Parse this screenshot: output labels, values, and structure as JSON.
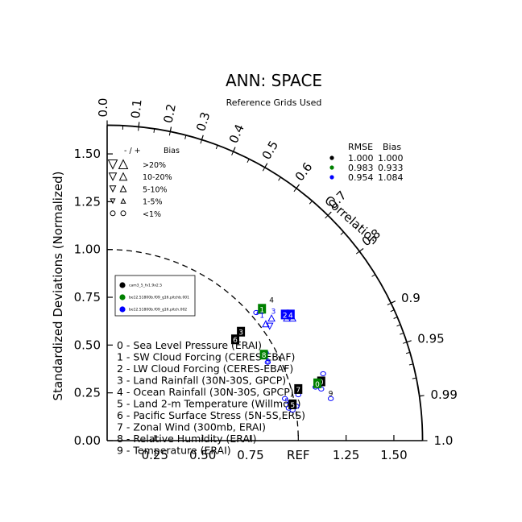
{
  "chart_data": {
    "type": "taylor",
    "title": "ANN: SPACE",
    "subtitle": "Reference Grids Used",
    "ylabel": "Standardized Deviations (Normalized)",
    "correlation_label": "Correlation",
    "ref_label": "REF",
    "x_ticks": [
      "0.25",
      "0.50",
      "0.75",
      "REF",
      "1.25",
      "1.50"
    ],
    "y_ticks": [
      "0.00",
      "0.25",
      "0.50",
      "0.75",
      "1.00",
      "1.25",
      "1.50"
    ],
    "sd_max": 1.65,
    "corr_ticks_inner": [
      "0.0",
      "0.1",
      "0.2",
      "0.3",
      "0.4",
      "0.5",
      "0.6",
      "0.7",
      "0.8"
    ],
    "corr_ticks_outer": [
      "0.9",
      "0.95",
      "0.99",
      "1.0"
    ],
    "bias_legend": {
      "header_sign": "- / +",
      "header_bias": "Bias",
      "rows": [
        ">20%",
        "10-20%",
        "5-10%",
        "1-5%",
        "<1%"
      ]
    },
    "rmse_legend": {
      "header_rmse": "RMSE",
      "header_bias": "Bias",
      "rows": [
        {
          "color": "#000000",
          "rmse": "1.000",
          "bias": "1.000"
        },
        {
          "color": "#008000",
          "rmse": "0.983",
          "bias": "0.933"
        },
        {
          "color": "#0000ff",
          "rmse": "0.954",
          "bias": "1.084"
        }
      ]
    },
    "cases": [
      {
        "name": "cam3_5_fv1.9x2.5",
        "color": "#000000"
      },
      {
        "name": "be12.51800b.f09_g16.pitchb.001",
        "color": "#008000"
      },
      {
        "name": "be12.51800b.f09_g16.pitch.002",
        "color": "#0000ff"
      }
    ],
    "variables": [
      "0 - Sea Level Pressure (ERAI)",
      "1 - SW Cloud Forcing (CERES-EBAF)",
      "2 - LW Cloud Forcing (CERES-EBAF)",
      "3 - Land Rainfall (30N-30S, GPCP)",
      "4 - Ocean Rainfall (30N-30S, GPCP)",
      "5 - Land 2-m Temperature (Willmott)",
      "6 - Pacific Surface Stress (5N-5S,ERS)",
      "7 - Zonal Wind (300mb, ERAI)",
      "8 - Relative Humidity (ERAI)",
      "9 - Temperature (ERAI)"
    ],
    "points": [
      {
        "case": 0,
        "var": "3",
        "x": 0.7,
        "y": 0.57,
        "style": "box"
      },
      {
        "case": 0,
        "var": "6",
        "x": 0.67,
        "y": 0.53,
        "style": "box"
      },
      {
        "case": 0,
        "var": "0",
        "x": 1.12,
        "y": 0.31,
        "style": "box"
      },
      {
        "case": 0,
        "var": "7",
        "x": 1.0,
        "y": 0.27,
        "style": "box"
      },
      {
        "case": 0,
        "var": "5",
        "x": 0.97,
        "y": 0.19,
        "style": "box"
      },
      {
        "case": 0,
        "var": "4",
        "x": 0.86,
        "y": 0.74,
        "style": "plain"
      },
      {
        "case": 0,
        "var": "9",
        "x": 1.17,
        "y": 0.25,
        "style": "plain"
      },
      {
        "case": 1,
        "var": "1",
        "x": 0.81,
        "y": 0.69,
        "style": "box"
      },
      {
        "case": 1,
        "var": "8",
        "x": 0.82,
        "y": 0.45,
        "style": "box"
      },
      {
        "case": 1,
        "var": "0",
        "x": 1.1,
        "y": 0.3,
        "style": "box"
      },
      {
        "case": 2,
        "var": "2",
        "x": 0.93,
        "y": 0.66,
        "style": "box"
      },
      {
        "case": 2,
        "var": "4",
        "x": 0.96,
        "y": 0.66,
        "style": "box"
      },
      {
        "case": 2,
        "var": "1",
        "x": 0.81,
        "y": 0.66,
        "style": "plain"
      },
      {
        "case": 2,
        "var": "3",
        "x": 0.87,
        "y": 0.68,
        "style": "plain"
      },
      {
        "case": 2,
        "var": "5",
        "x": 0.94,
        "y": 0.21,
        "style": "plain"
      },
      {
        "case": 2,
        "var": "8",
        "x": 0.84,
        "y": 0.42,
        "style": "plain"
      }
    ],
    "bias_markers": [
      {
        "case": 2,
        "x": 0.86,
        "y": 0.64,
        "shape": "tri-up"
      },
      {
        "case": 2,
        "x": 0.83,
        "y": 0.61,
        "shape": "tri-up"
      },
      {
        "case": 2,
        "x": 0.85,
        "y": 0.6,
        "shape": "tri-down"
      },
      {
        "case": 2,
        "x": 0.94,
        "y": 0.64,
        "shape": "tri-up"
      },
      {
        "case": 2,
        "x": 0.97,
        "y": 0.64,
        "shape": "tri-up"
      },
      {
        "case": 2,
        "x": 0.8,
        "y": 0.68,
        "shape": "tri-up"
      },
      {
        "case": 2,
        "x": 0.82,
        "y": 0.44,
        "shape": "circle"
      },
      {
        "case": 2,
        "x": 0.84,
        "y": 0.41,
        "shape": "circle"
      },
      {
        "case": 2,
        "x": 0.83,
        "y": 0.46,
        "shape": "circle"
      },
      {
        "case": 2,
        "x": 0.93,
        "y": 0.22,
        "shape": "circle"
      },
      {
        "case": 2,
        "x": 0.96,
        "y": 0.2,
        "shape": "circle"
      },
      {
        "case": 2,
        "x": 0.95,
        "y": 0.17,
        "shape": "circle"
      },
      {
        "case": 2,
        "x": 0.97,
        "y": 0.16,
        "shape": "circle"
      },
      {
        "case": 2,
        "x": 0.99,
        "y": 0.18,
        "shape": "circle"
      },
      {
        "case": 2,
        "x": 1.0,
        "y": 0.24,
        "shape": "circle"
      },
      {
        "case": 2,
        "x": 1.13,
        "y": 0.35,
        "shape": "circle"
      },
      {
        "case": 2,
        "x": 1.11,
        "y": 0.29,
        "shape": "circle"
      },
      {
        "case": 2,
        "x": 1.12,
        "y": 0.27,
        "shape": "circle"
      },
      {
        "case": 2,
        "x": 1.09,
        "y": 0.28,
        "shape": "circle"
      },
      {
        "case": 2,
        "x": 1.17,
        "y": 0.22,
        "shape": "circle"
      },
      {
        "case": 2,
        "x": 0.78,
        "y": 0.67,
        "shape": "circle"
      }
    ]
  }
}
